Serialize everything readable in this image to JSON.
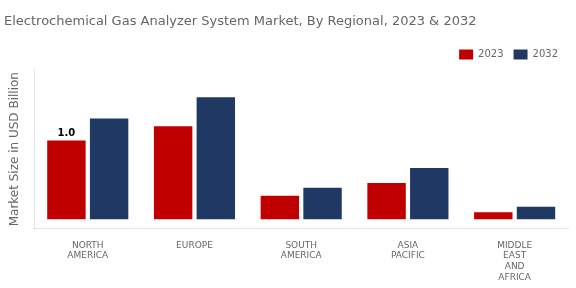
{
  "chart_data": {
    "type": "bar",
    "title": "Electrochemical Gas Analyzer System Market, By Regional, 2023 & 2032",
    "ylabel": "Market Size in USD Billion",
    "categories": [
      "NORTH\nAMERICA",
      "EUROPE",
      "SOUTH\nAMERICA",
      "ASIA\nPACIFIC",
      "MIDDLE\nEAST\nAND\nAFRICA"
    ],
    "series": [
      {
        "name": "2023",
        "color": "#c00000",
        "values": [
          1.0,
          1.18,
          0.3,
          0.46,
          0.09
        ]
      },
      {
        "name": "2032",
        "color": "#1f3864",
        "values": [
          1.28,
          1.55,
          0.4,
          0.65,
          0.16
        ]
      }
    ],
    "annotations": [
      {
        "text": "1.0",
        "x": "NORTH\nAMERICA",
        "y": 1.0,
        "series": "2023"
      }
    ],
    "ylim": [
      -0.12,
      1.9
    ],
    "yticks": [],
    "tick_labels": "x",
    "grid": false,
    "legend": "upper right"
  }
}
